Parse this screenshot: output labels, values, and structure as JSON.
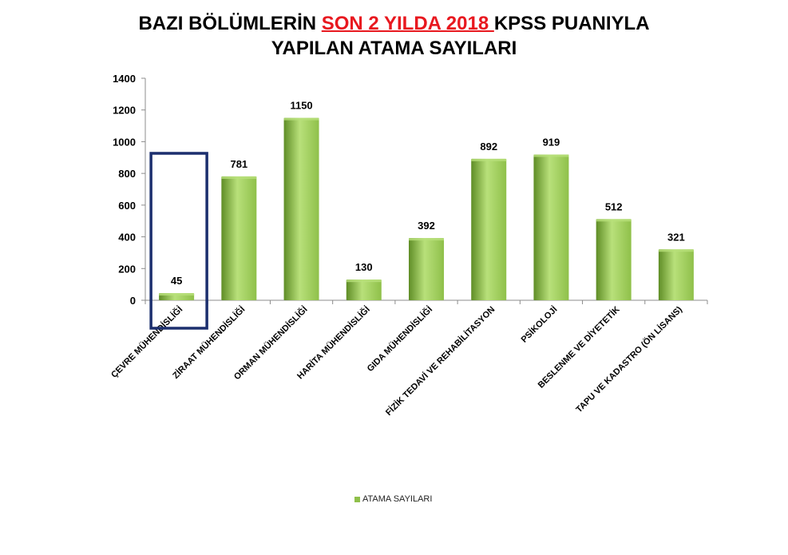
{
  "title": {
    "line1_before": "BAZI BÖLÜMLERİN ",
    "line1_highlight": "SON 2 YILDA 2018 ",
    "line1_after": "KPSS PUANIYLA",
    "line2": "YAPILAN ATAMA SAYILARI"
  },
  "colors": {
    "bar_light": "#b8e07a",
    "bar_mid": "#8fc04a",
    "bar_dark": "#5f8d26",
    "highlight_text": "#e8181f",
    "highlight_box": "#1c2f6e"
  },
  "chart_data": {
    "type": "bar",
    "categories": [
      "ÇEVRE MÜHENDİSLİĞİ",
      "ZİRAAT MÜHENDİSLİĞİ",
      "ORMAN MÜHENDİSLİĞİ",
      "HARİTA MÜHENDİSLİĞİ",
      "GIDA MÜHENDİSLİĞİ",
      "FİZİK TEDAVİ VE REHABİLİTASYON",
      "PSİKOLOJİ",
      "BESLENME VE DİYETETİK",
      "TAPU VE KADASTRO (ÖN LİSANS)"
    ],
    "series": [
      {
        "name": "ATAMA SAYILARI",
        "values": [
          45,
          781,
          1150,
          130,
          392,
          892,
          919,
          512,
          321
        ]
      }
    ],
    "ylim": [
      0,
      1400
    ],
    "yticks": [
      "0",
      "200",
      "400",
      "600",
      "800",
      "1000",
      "1200",
      "1400"
    ],
    "data_labels": [
      "45",
      "781",
      "1150",
      "130",
      "392",
      "892",
      "919",
      "512",
      "321"
    ],
    "highlighted_category": "ÇEVRE MÜHENDİSLİĞİ",
    "legend_position": "bottom",
    "grid": false
  }
}
